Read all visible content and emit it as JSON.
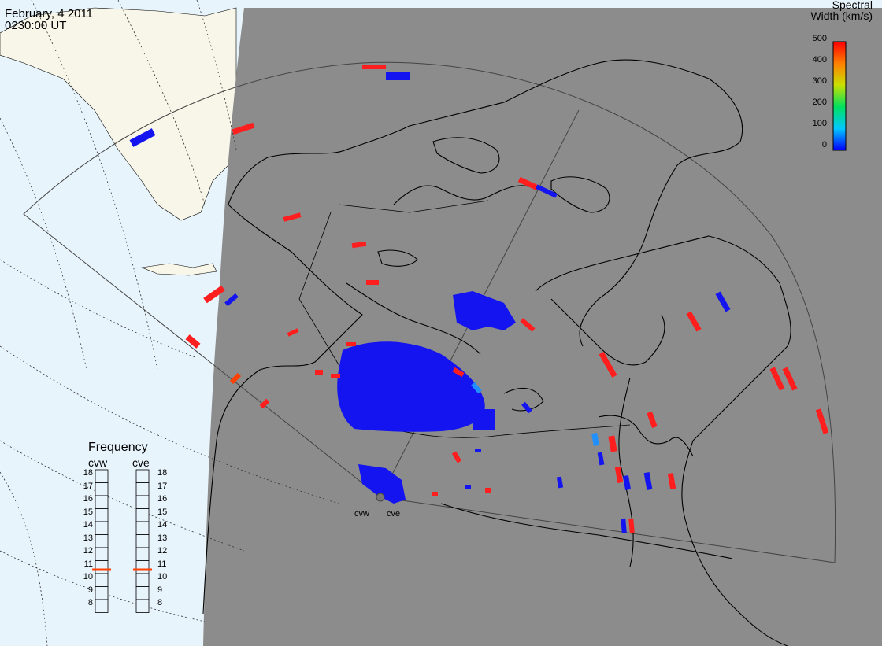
{
  "header": {
    "date": "February, 4 2011",
    "time": "0230:00 UT"
  },
  "colorbar": {
    "title_line1": "Spectral",
    "title_line2": "Width (km/s)",
    "ticks": [
      "500",
      "400",
      "300",
      "200",
      "100",
      "0"
    ],
    "range": [
      0,
      500
    ],
    "colors": [
      "#0000ff",
      "#00c8ff",
      "#00e060",
      "#e0e000",
      "#ff8000",
      "#ff0000"
    ]
  },
  "frequency_panel": {
    "title": "Frequency",
    "radars": [
      {
        "name": "cvw",
        "frequency": 10.8
      },
      {
        "name": "cve",
        "frequency": 10.8
      }
    ],
    "scale": [
      "18",
      "17",
      "16",
      "15",
      "14",
      "13",
      "12",
      "11",
      "10",
      "9",
      "8"
    ],
    "marker_color": "#ff4000"
  },
  "radar_sites": [
    {
      "label": "cvw"
    },
    {
      "label": "cve"
    }
  ],
  "colors": {
    "night_side": "#8c8c8c",
    "ocean_day": "#e8f4fc",
    "land_day": "#f8f6e8",
    "scatter_low": "#1414f0",
    "scatter_high": "#ff1e1e"
  }
}
